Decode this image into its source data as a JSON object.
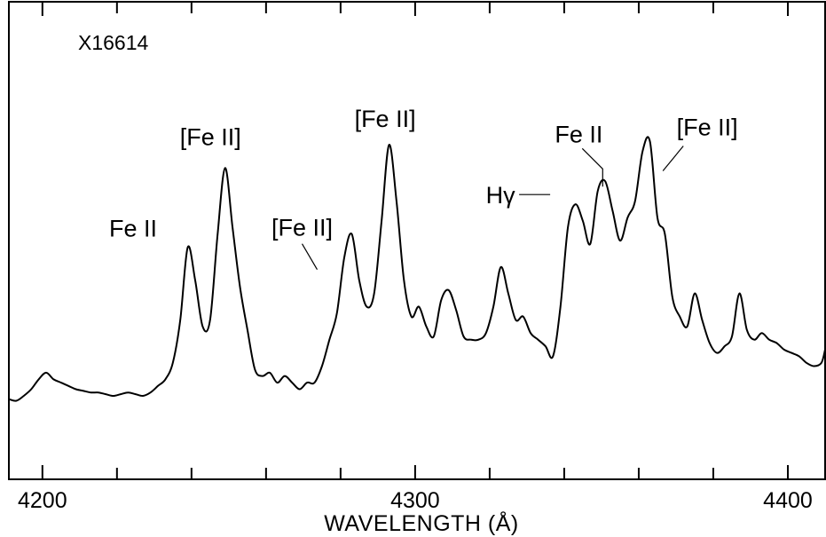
{
  "chart_data": {
    "type": "line",
    "title": "X16614",
    "xlabel": "WAVELENGTH   (Å)",
    "ylabel": "",
    "xlim": [
      4191,
      4410
    ],
    "ylim": [
      0,
      1
    ],
    "xticks_labeled": [
      "4200",
      "4300",
      "4400"
    ],
    "xtick_values_labeled": [
      4200,
      4300,
      4400
    ],
    "xtick_values_minor": [
      4200,
      4220,
      4240,
      4260,
      4280,
      4300,
      4320,
      4340,
      4360,
      4380,
      4400
    ],
    "grid": false,
    "legend": "none",
    "series": [
      {
        "color": "#000000",
        "x": [
          4191,
          4193,
          4195,
          4197,
          4199,
          4201,
          4203,
          4205,
          4207,
          4209,
          4211,
          4213,
          4215,
          4217,
          4219,
          4221,
          4223,
          4225,
          4227,
          4229,
          4231,
          4233,
          4235,
          4237,
          4239,
          4241,
          4243,
          4245,
          4247,
          4249,
          4251,
          4253,
          4255,
          4257,
          4259,
          4261,
          4263,
          4265,
          4267,
          4269,
          4271,
          4273,
          4275,
          4277,
          4279,
          4281,
          4283,
          4285,
          4287,
          4289,
          4291,
          4293,
          4295,
          4297,
          4299,
          4301,
          4303,
          4305,
          4307,
          4309,
          4311,
          4313,
          4315,
          4317,
          4319,
          4321,
          4323,
          4325,
          4327,
          4329,
          4331,
          4333,
          4335,
          4337,
          4339,
          4341,
          4343,
          4345,
          4347,
          4349,
          4351,
          4353,
          4355,
          4357,
          4359,
          4361,
          4363,
          4365,
          4367,
          4369,
          4371,
          4373,
          4375,
          4377,
          4379,
          4381,
          4383,
          4385,
          4387,
          4389,
          4391,
          4393,
          4395,
          4397,
          4399,
          4401,
          4403,
          4405,
          4407,
          4409,
          4410
        ],
        "y": [
          0.06,
          0.055,
          0.07,
          0.09,
          0.12,
          0.14,
          0.12,
          0.11,
          0.1,
          0.09,
          0.085,
          0.08,
          0.08,
          0.075,
          0.07,
          0.075,
          0.08,
          0.075,
          0.07,
          0.08,
          0.1,
          0.12,
          0.17,
          0.3,
          0.52,
          0.42,
          0.28,
          0.3,
          0.56,
          0.76,
          0.58,
          0.4,
          0.27,
          0.15,
          0.13,
          0.14,
          0.11,
          0.13,
          0.11,
          0.09,
          0.11,
          0.11,
          0.16,
          0.24,
          0.32,
          0.49,
          0.56,
          0.42,
          0.34,
          0.38,
          0.6,
          0.83,
          0.66,
          0.42,
          0.31,
          0.34,
          0.28,
          0.25,
          0.36,
          0.39,
          0.33,
          0.25,
          0.24,
          0.24,
          0.26,
          0.34,
          0.46,
          0.38,
          0.3,
          0.31,
          0.26,
          0.24,
          0.22,
          0.19,
          0.34,
          0.58,
          0.65,
          0.6,
          0.53,
          0.69,
          0.72,
          0.63,
          0.54,
          0.61,
          0.66,
          0.81,
          0.84,
          0.61,
          0.56,
          0.37,
          0.31,
          0.28,
          0.38,
          0.3,
          0.23,
          0.2,
          0.22,
          0.25,
          0.38,
          0.27,
          0.24,
          0.26,
          0.24,
          0.23,
          0.21,
          0.2,
          0.19,
          0.17,
          0.16,
          0.17,
          0.21
        ]
      }
    ],
    "annotations": [
      {
        "text": "Fe II",
        "x": 4236,
        "y": 0.52
      },
      {
        "text": "[Fe II]",
        "x": 4247,
        "y": 0.76
      },
      {
        "text": "[Fe II]",
        "x": 4278,
        "y": 0.49
      },
      {
        "text": "[Fe II]",
        "x": 4291,
        "y": 0.83
      },
      {
        "text": "Hγ",
        "x": 4341,
        "y": 0.72
      },
      {
        "text": "Fe II",
        "x": 4352,
        "y": 0.69
      },
      {
        "text": "[Fe II]",
        "x": 4361,
        "y": 0.84
      }
    ]
  }
}
